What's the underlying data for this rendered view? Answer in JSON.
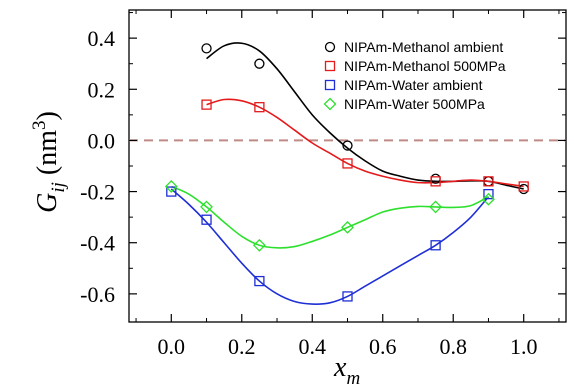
{
  "chart_data": {
    "type": "line",
    "xlim": [
      -0.12,
      1.12
    ],
    "ylim": [
      -0.71,
      0.51
    ],
    "x_ticks": [
      0.0,
      0.2,
      0.4,
      0.6,
      0.8,
      1.0
    ],
    "x_tick_labels": [
      "0.0",
      "0.2",
      "0.4",
      "0.6",
      "0.8",
      "1.0"
    ],
    "y_ticks": [
      -0.6,
      -0.4,
      -0.2,
      0.0,
      0.2,
      0.4
    ],
    "y_tick_labels": [
      "-0.6",
      "-0.4",
      "-0.2",
      "0.0",
      "0.2",
      "0.4"
    ],
    "xlabel": {
      "main": "x",
      "sub": "m"
    },
    "ylabel": {
      "main": "G",
      "sub": "ij",
      "unit": " (nm",
      "sup": "3",
      "close": ")"
    },
    "reference_line": {
      "y": 0.0,
      "style": "dashed",
      "color": "#c08a86"
    },
    "legend_position": "top-right",
    "series": [
      {
        "name": "NIPAm-Methanol ambient",
        "color": "#000000",
        "marker": "circle",
        "points": [
          [
            0.1,
            0.36
          ],
          [
            0.25,
            0.3
          ],
          [
            0.5,
            -0.02
          ],
          [
            0.75,
            -0.15
          ],
          [
            0.9,
            -0.16
          ],
          [
            1.0,
            -0.19
          ]
        ],
        "curve": [
          [
            0.1,
            0.32
          ],
          [
            0.15,
            0.37
          ],
          [
            0.2,
            0.38
          ],
          [
            0.25,
            0.35
          ],
          [
            0.3,
            0.28
          ],
          [
            0.35,
            0.19
          ],
          [
            0.4,
            0.1
          ],
          [
            0.45,
            0.03
          ],
          [
            0.5,
            -0.03
          ],
          [
            0.55,
            -0.08
          ],
          [
            0.6,
            -0.12
          ],
          [
            0.65,
            -0.14
          ],
          [
            0.7,
            -0.155
          ],
          [
            0.75,
            -0.16
          ],
          [
            0.8,
            -0.16
          ],
          [
            0.85,
            -0.158
          ],
          [
            0.9,
            -0.16
          ],
          [
            0.95,
            -0.175
          ],
          [
            1.0,
            -0.19
          ]
        ]
      },
      {
        "name": "NIPAm-Methanol 500MPa",
        "color": "#e41a1c",
        "marker": "square",
        "points": [
          [
            0.1,
            0.14
          ],
          [
            0.25,
            0.13
          ],
          [
            0.5,
            -0.09
          ],
          [
            0.75,
            -0.16
          ],
          [
            0.9,
            -0.16
          ],
          [
            1.0,
            -0.18
          ]
        ],
        "curve": [
          [
            0.1,
            0.14
          ],
          [
            0.15,
            0.16
          ],
          [
            0.2,
            0.155
          ],
          [
            0.25,
            0.13
          ],
          [
            0.3,
            0.09
          ],
          [
            0.35,
            0.04
          ],
          [
            0.4,
            -0.01
          ],
          [
            0.45,
            -0.05
          ],
          [
            0.5,
            -0.09
          ],
          [
            0.55,
            -0.12
          ],
          [
            0.6,
            -0.14
          ],
          [
            0.65,
            -0.155
          ],
          [
            0.7,
            -0.165
          ],
          [
            0.75,
            -0.165
          ],
          [
            0.8,
            -0.16
          ],
          [
            0.85,
            -0.155
          ],
          [
            0.9,
            -0.16
          ],
          [
            0.95,
            -0.17
          ],
          [
            1.0,
            -0.18
          ]
        ]
      },
      {
        "name": "NIPAm-Water ambient",
        "color": "#1f2fd6",
        "marker": "square",
        "points": [
          [
            0.0,
            -0.2
          ],
          [
            0.1,
            -0.31
          ],
          [
            0.25,
            -0.55
          ],
          [
            0.5,
            -0.61
          ],
          [
            0.75,
            -0.41
          ],
          [
            0.9,
            -0.21
          ]
        ],
        "curve": [
          [
            0.0,
            -0.19
          ],
          [
            0.05,
            -0.25
          ],
          [
            0.1,
            -0.32
          ],
          [
            0.15,
            -0.4
          ],
          [
            0.2,
            -0.48
          ],
          [
            0.25,
            -0.55
          ],
          [
            0.3,
            -0.6
          ],
          [
            0.35,
            -0.63
          ],
          [
            0.4,
            -0.64
          ],
          [
            0.45,
            -0.635
          ],
          [
            0.5,
            -0.61
          ],
          [
            0.55,
            -0.57
          ],
          [
            0.6,
            -0.53
          ],
          [
            0.65,
            -0.49
          ],
          [
            0.7,
            -0.45
          ],
          [
            0.75,
            -0.41
          ],
          [
            0.8,
            -0.36
          ],
          [
            0.85,
            -0.3
          ],
          [
            0.9,
            -0.22
          ]
        ]
      },
      {
        "name": "NIPAm-Water 500MPa",
        "color": "#2ee02e",
        "marker": "diamond",
        "points": [
          [
            0.0,
            -0.18
          ],
          [
            0.1,
            -0.26
          ],
          [
            0.25,
            -0.41
          ],
          [
            0.5,
            -0.34
          ],
          [
            0.75,
            -0.26
          ],
          [
            0.9,
            -0.23
          ]
        ],
        "curve": [
          [
            0.0,
            -0.18
          ],
          [
            0.05,
            -0.21
          ],
          [
            0.1,
            -0.26
          ],
          [
            0.15,
            -0.32
          ],
          [
            0.2,
            -0.375
          ],
          [
            0.25,
            -0.41
          ],
          [
            0.3,
            -0.42
          ],
          [
            0.35,
            -0.415
          ],
          [
            0.4,
            -0.395
          ],
          [
            0.45,
            -0.37
          ],
          [
            0.5,
            -0.34
          ],
          [
            0.55,
            -0.31
          ],
          [
            0.6,
            -0.28
          ],
          [
            0.65,
            -0.265
          ],
          [
            0.7,
            -0.258
          ],
          [
            0.75,
            -0.26
          ],
          [
            0.8,
            -0.262
          ],
          [
            0.85,
            -0.255
          ],
          [
            0.9,
            -0.22
          ]
        ]
      }
    ]
  }
}
